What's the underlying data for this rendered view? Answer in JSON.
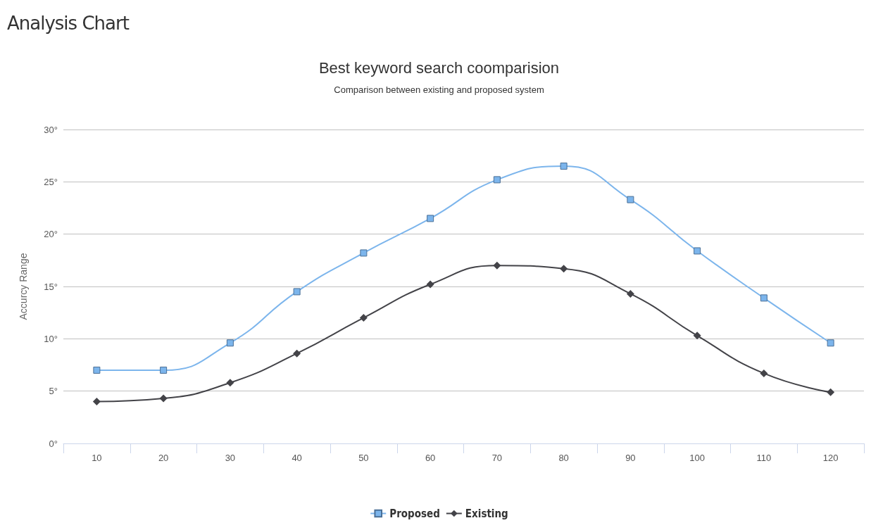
{
  "chart_data": {
    "type": "line",
    "title": "Best keyword search coomparision",
    "subtitle": "Comparison between existing and proposed system",
    "annotations": [
      "Analysis Chart"
    ],
    "ylabel": "Accurcy Range",
    "categories": [
      "10",
      "20",
      "30",
      "40",
      "50",
      "60",
      "70",
      "80",
      "90",
      "100",
      "110",
      "120"
    ],
    "series": [
      {
        "name": "Proposed",
        "color": "#7cb5ec",
        "marker": "square",
        "values": [
          7.0,
          7.0,
          9.6,
          14.5,
          18.2,
          21.5,
          25.2,
          26.5,
          23.3,
          18.4,
          13.9,
          9.6
        ]
      },
      {
        "name": "Existing",
        "color": "#434348",
        "marker": "diamond",
        "values": [
          4.0,
          4.3,
          5.8,
          8.6,
          12.0,
          15.2,
          17.0,
          16.7,
          14.3,
          10.3,
          6.7,
          4.9
        ]
      }
    ],
    "ylim": [
      0,
      30
    ],
    "yticks": [
      {
        "value": 0,
        "label": "0°"
      },
      {
        "value": 5,
        "label": "5°"
      },
      {
        "value": 10,
        "label": "10°"
      },
      {
        "value": 15,
        "label": "15°"
      },
      {
        "value": 20,
        "label": "20°"
      },
      {
        "value": 25,
        "label": "25°"
      },
      {
        "value": 30,
        "label": "30°"
      }
    ],
    "grid": "y",
    "legend": "bottom",
    "line_style": "solid"
  }
}
